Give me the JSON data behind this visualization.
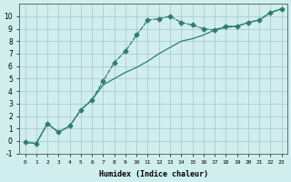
{
  "xlabel": "Humidex (Indice chaleur)",
  "ylabel": "",
  "background_color": "#d0eeee",
  "grid_color": "#b0cccc",
  "line_color": "#2e7d6e",
  "x_line1": [
    0,
    1,
    2,
    3,
    4,
    5,
    6,
    7,
    8,
    9,
    10,
    11,
    12,
    13,
    14,
    15,
    16,
    17,
    18,
    19,
    20,
    21,
    22,
    23
  ],
  "y_line1": [
    -0.1,
    -0.2,
    1.4,
    0.7,
    1.2,
    2.5,
    3.3,
    4.8,
    6.3,
    7.2,
    8.5,
    9.7,
    9.8,
    10.0,
    9.5,
    9.3,
    9.0,
    8.9,
    9.2,
    9.2,
    9.5,
    9.7,
    10.3,
    10.6
  ],
  "x_line2": [
    0,
    1,
    2,
    3,
    4,
    5,
    6,
    7,
    8,
    9,
    10,
    11,
    12,
    13,
    14,
    15,
    16,
    17,
    18,
    19,
    20,
    21,
    22,
    23
  ],
  "y_line2": [
    -0.1,
    -0.2,
    1.4,
    0.7,
    1.2,
    2.5,
    3.3,
    4.5,
    5.0,
    5.5,
    5.9,
    6.4,
    7.0,
    7.5,
    8.0,
    8.2,
    8.5,
    8.9,
    9.1,
    9.2,
    9.5,
    9.7,
    10.3,
    10.6
  ],
  "ylim": [
    -1,
    11
  ],
  "xlim": [
    0,
    23
  ],
  "yticks": [
    -1,
    0,
    1,
    2,
    3,
    4,
    5,
    6,
    7,
    8,
    9,
    10
  ],
  "xticks": [
    0,
    1,
    2,
    3,
    4,
    5,
    6,
    7,
    8,
    9,
    10,
    11,
    12,
    13,
    14,
    15,
    16,
    17,
    18,
    19,
    20,
    21,
    22,
    23
  ],
  "xtick_labels": [
    "0",
    "1",
    "2",
    "3",
    "4",
    "5",
    "6",
    "7",
    "8",
    "9",
    "10",
    "11",
    "12",
    "13",
    "14",
    "15",
    "16",
    "17",
    "18",
    "19",
    "20",
    "21",
    "22",
    "23"
  ],
  "ytick_labels": [
    "-1",
    "0",
    "1",
    "2",
    "3",
    "4",
    "5",
    "6",
    "7",
    "8",
    "9",
    "10"
  ]
}
